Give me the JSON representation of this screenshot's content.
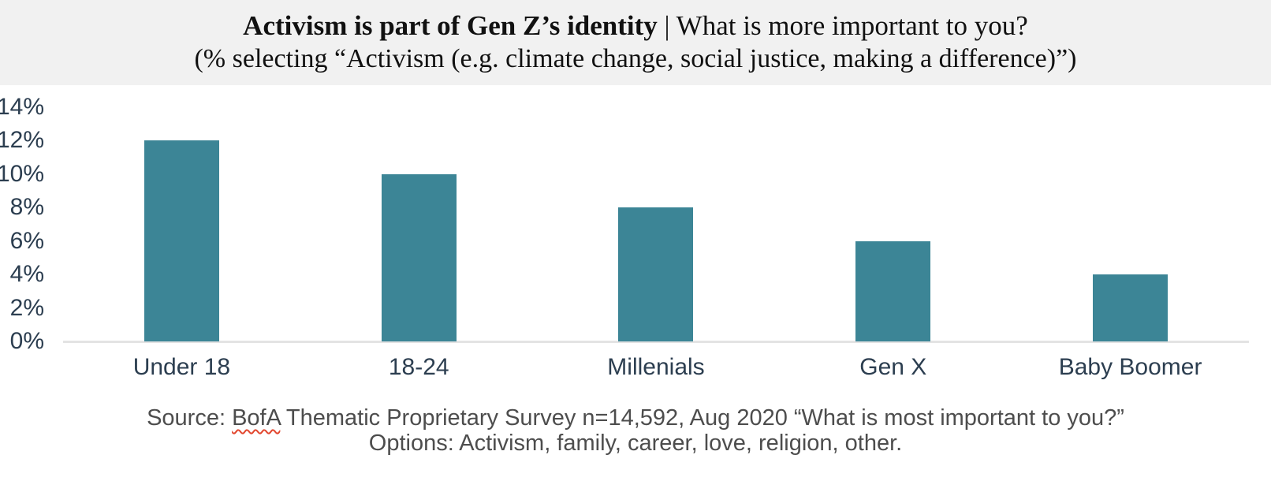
{
  "header": {
    "title_bold": "Activism is part of Gen Z’s identity",
    "title_rest": " | What is more important to you?",
    "subtitle": "(% selecting “Activism (e.g. climate change, social justice, making a difference)”)"
  },
  "chart_data": {
    "type": "bar",
    "categories": [
      "Under 18",
      "18-24",
      "Millenials",
      "Gen X",
      "Baby Boomer"
    ],
    "values": [
      12,
      10,
      8,
      6,
      4
    ],
    "title": "Activism is part of Gen Z’s identity | What is more important to you? (% selecting “Activism (e.g. climate change, social justice, making a difference)”)",
    "xlabel": "",
    "ylabel": "",
    "ylim": [
      0,
      14
    ],
    "ytick_step": 2,
    "ytick_labels": [
      "0%",
      "2%",
      "4%",
      "6%",
      "8%",
      "10%",
      "12%",
      "14%"
    ],
    "grid": false,
    "legend_position": "none",
    "bar_color": "#3C8596"
  },
  "footer": {
    "source_prefix": "Source: ",
    "source_word": "BofA",
    "source_rest": " Thematic Proprietary Survey n=14,592, Aug 2020 “What is most important to you?”",
    "options_line": "Options: Activism, family, career, love, religion, other."
  },
  "colors": {
    "bar": "#3C8596",
    "axis_text": "#2C3E50",
    "header_background": "#F1F1F1",
    "source_text": "#4D4D4D",
    "axis_line": "#E3E3E3",
    "spellcheck_underline": "#E2472F"
  }
}
